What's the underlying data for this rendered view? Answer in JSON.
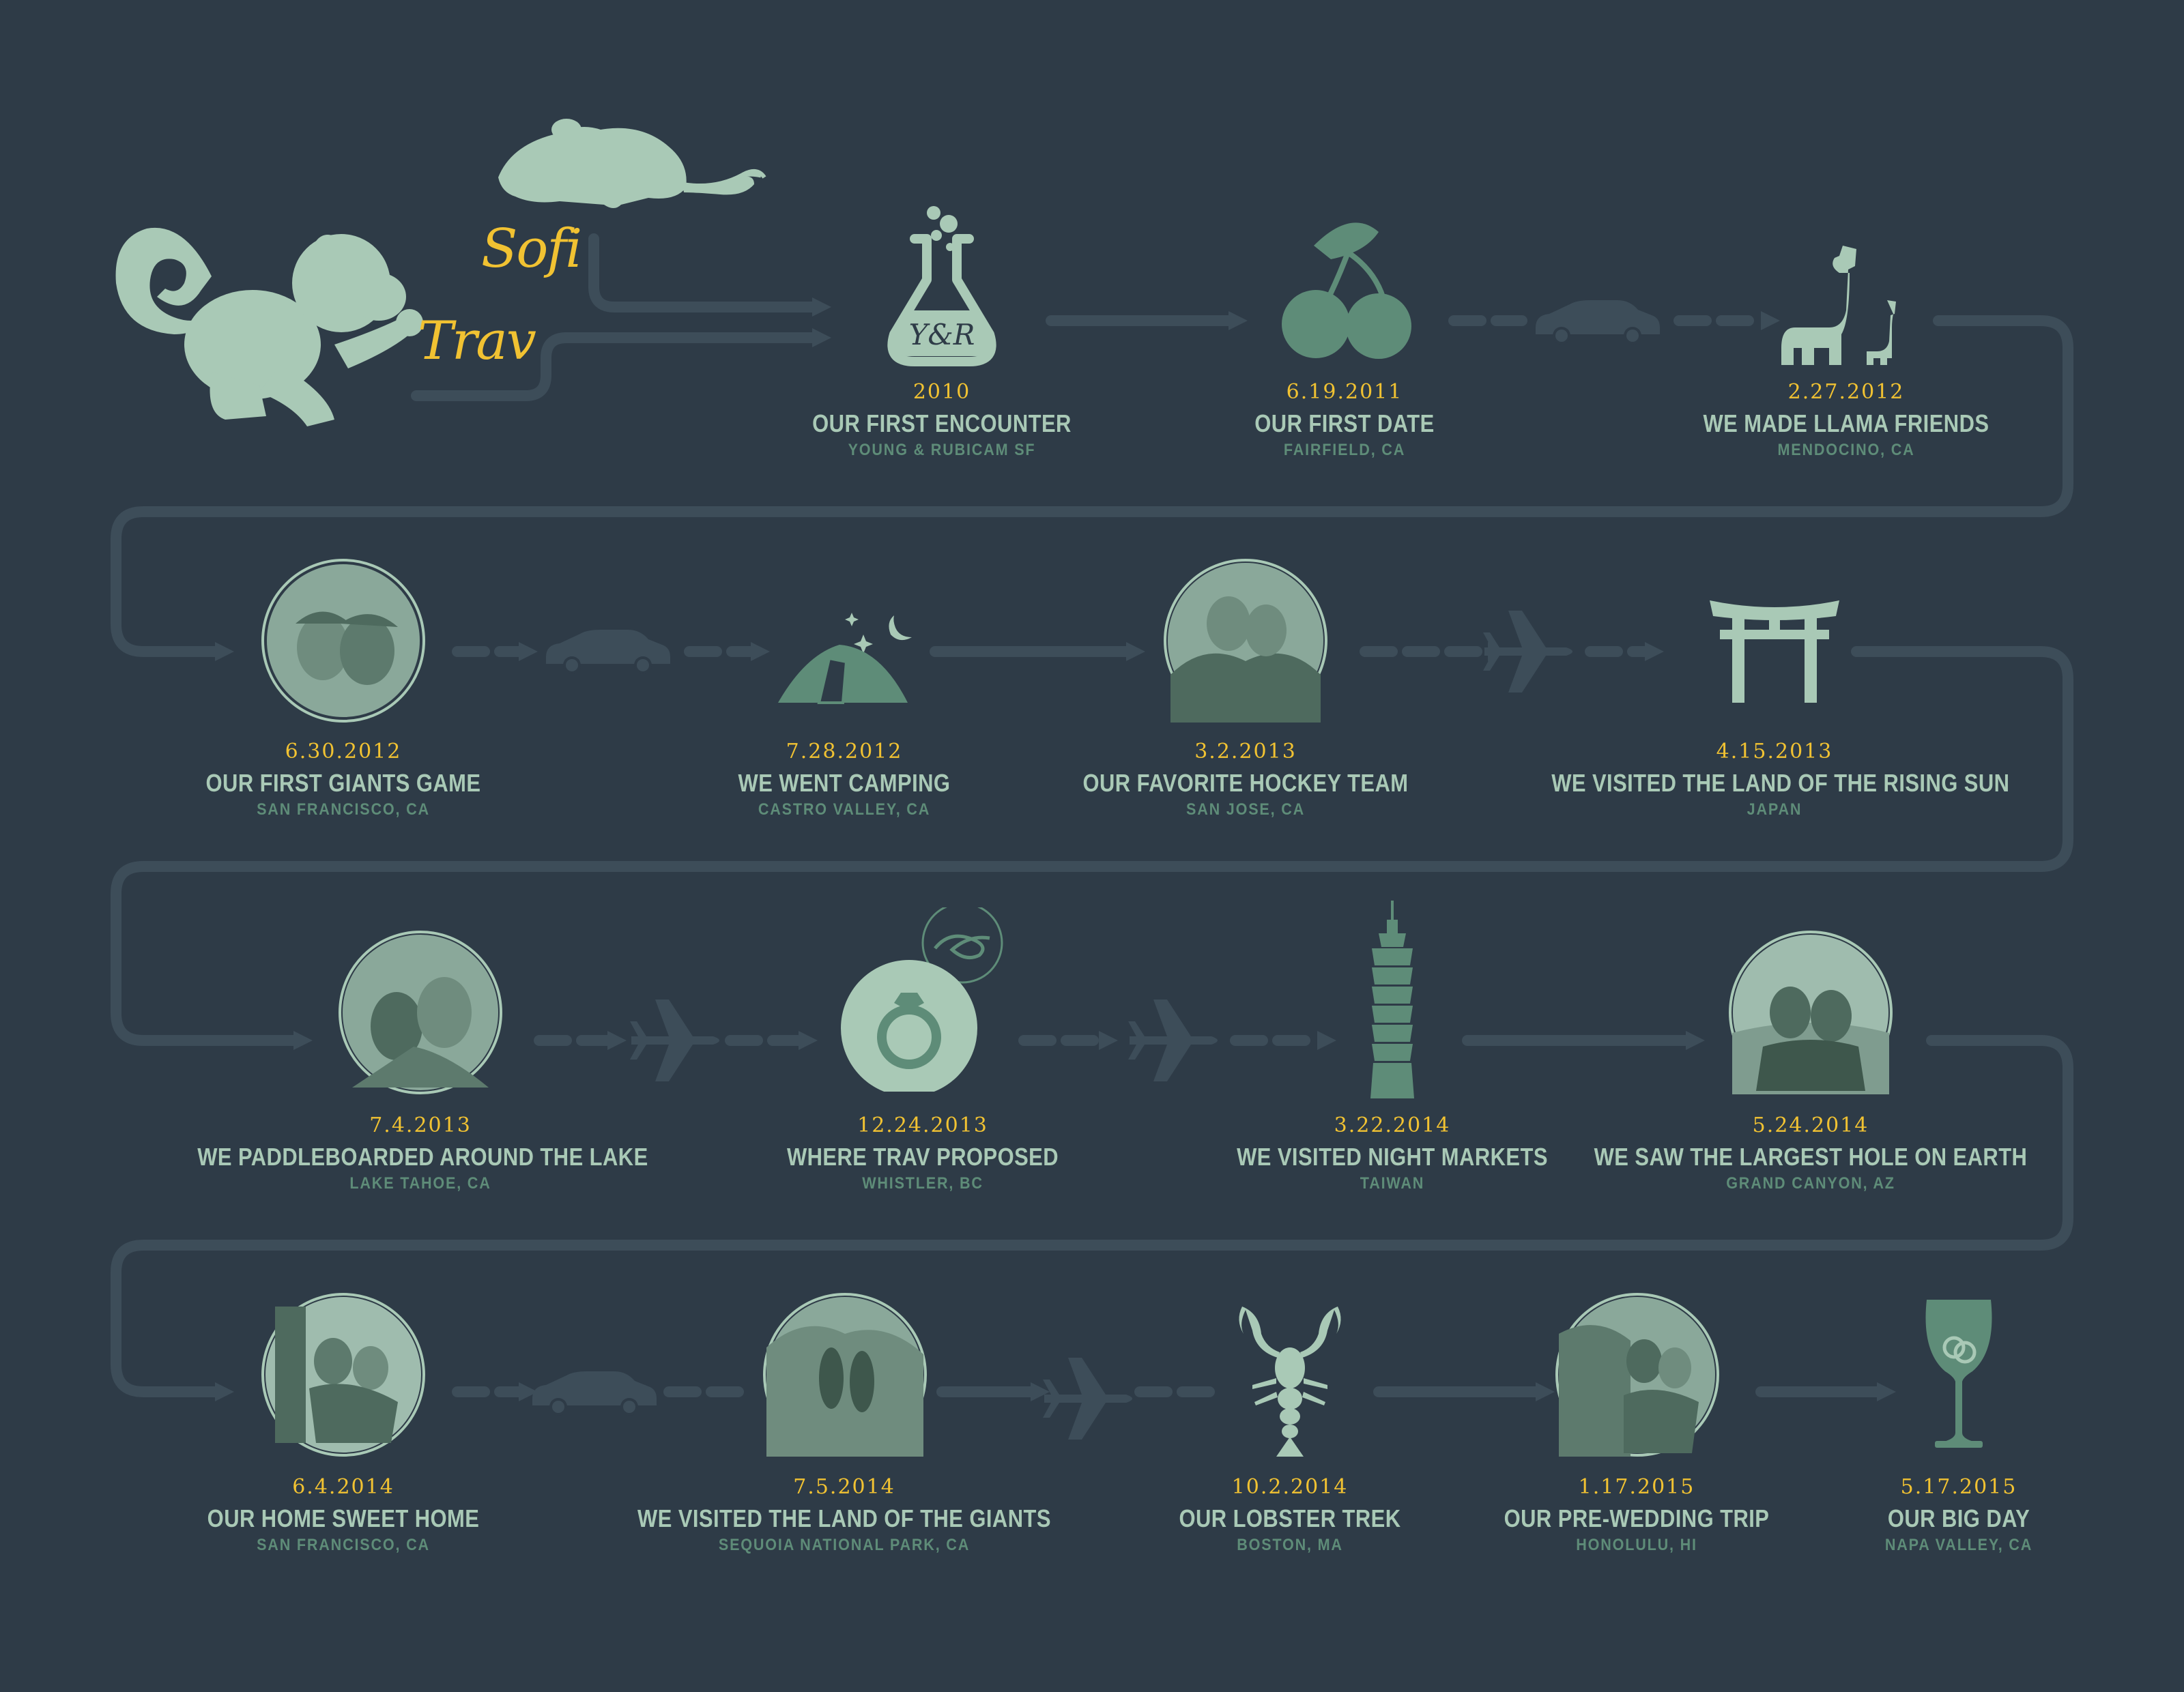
{
  "names": {
    "person1": "Sofi",
    "person2": "Trav"
  },
  "flask_label": "Y&R",
  "colors": {
    "background": "#2e3b47",
    "path": "#3d4d59",
    "accent": "#f1c232",
    "mint": "#a9c9b6",
    "green": "#5e8c78"
  },
  "events": [
    {
      "date": "2010",
      "title": "OUR FIRST ENCOUNTER",
      "location": "YOUNG & RUBICAM SF",
      "icon": "flask-icon"
    },
    {
      "date": "6.19.2011",
      "title": "OUR FIRST DATE",
      "location": "FAIRFIELD, CA",
      "icon": "cherries-icon"
    },
    {
      "date": "2.27.2012",
      "title": "WE MADE LLAMA FRIENDS",
      "location": "MENDOCINO, CA",
      "icon": "llama-icon"
    },
    {
      "date": "6.30.2012",
      "title": "OUR FIRST GIANTS GAME",
      "location": "SAN FRANCISCO, CA",
      "icon": "photo-circle-icon"
    },
    {
      "date": "7.28.2012",
      "title": "WE WENT CAMPING",
      "location": "CASTRO VALLEY, CA",
      "icon": "tent-icon"
    },
    {
      "date": "3.2.2013",
      "title": "OUR FAVORITE HOCKEY TEAM",
      "location": "SAN JOSE, CA",
      "icon": "photo-circle-icon"
    },
    {
      "date": "4.15.2013",
      "title": "WE VISITED THE LAND OF THE RISING SUN",
      "location": "JAPAN",
      "icon": "torii-gate-icon"
    },
    {
      "date": "7.4.2013",
      "title": "WE PADDLEBOARDED AROUND THE LAKE",
      "location": "LAKE TAHOE, CA",
      "icon": "photo-circle-icon"
    },
    {
      "date": "12.24.2013",
      "title": "WHERE TRAV PROPOSED",
      "location": "WHISTLER, BC",
      "icon": "ring-icon"
    },
    {
      "date": "3.22.2014",
      "title": "WE VISITED NIGHT MARKETS",
      "location": "TAIWAN",
      "icon": "tower-icon"
    },
    {
      "date": "5.24.2014",
      "title": "WE SAW THE LARGEST HOLE ON EARTH",
      "location": "GRAND CANYON, AZ",
      "icon": "photo-circle-icon"
    },
    {
      "date": "6.4.2014",
      "title": "OUR HOME SWEET HOME",
      "location": "SAN FRANCISCO, CA",
      "icon": "photo-circle-icon"
    },
    {
      "date": "7.5.2014",
      "title": "WE VISITED THE LAND OF THE GIANTS",
      "location": "SEQUOIA NATIONAL PARK, CA",
      "icon": "photo-circle-icon"
    },
    {
      "date": "10.2.2014",
      "title": "OUR LOBSTER TREK",
      "location": "BOSTON, MA",
      "icon": "lobster-icon"
    },
    {
      "date": "1.17.2015",
      "title": "OUR PRE-WEDDING TRIP",
      "location": "HONOLULU, HI",
      "icon": "photo-circle-icon"
    },
    {
      "date": "5.17.2015",
      "title": "OUR BIG DAY",
      "location": "NAPA VALLEY, CA",
      "icon": "wine-glass-icon"
    }
  ]
}
